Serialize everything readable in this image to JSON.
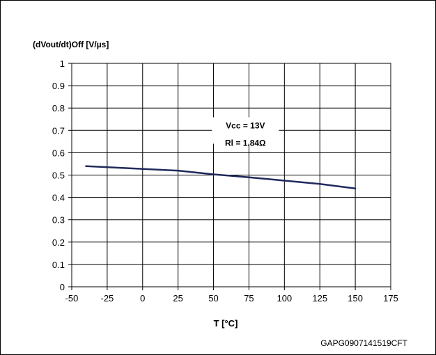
{
  "chart_data": {
    "type": "line",
    "title": "(dVout/dt)Off [V/µs]",
    "xlabel": "T [°C]",
    "ylabel": "",
    "xlim": [
      -50,
      175
    ],
    "ylim": [
      0,
      1
    ],
    "x_ticks": [
      "-50",
      "-25",
      "0",
      "25",
      "50",
      "75",
      "100",
      "125",
      "150",
      "175"
    ],
    "y_ticks": [
      "0",
      "0.1",
      "0.2",
      "0.3",
      "0.4",
      "0.5",
      "0.6",
      "0.7",
      "0.8",
      "0.9",
      "1"
    ],
    "grid": true,
    "series": [
      {
        "color": "#1f2a5c",
        "x": [
          -40,
          25,
          50,
          75,
          100,
          125,
          150
        ],
        "y": [
          0.54,
          0.52,
          0.503,
          0.49,
          0.475,
          0.46,
          0.44
        ]
      }
    ],
    "annotations": [
      "Vcc = 13V",
      "Rl = 1.84Ω"
    ],
    "figure_code": "GAPG0907141519CFT"
  }
}
